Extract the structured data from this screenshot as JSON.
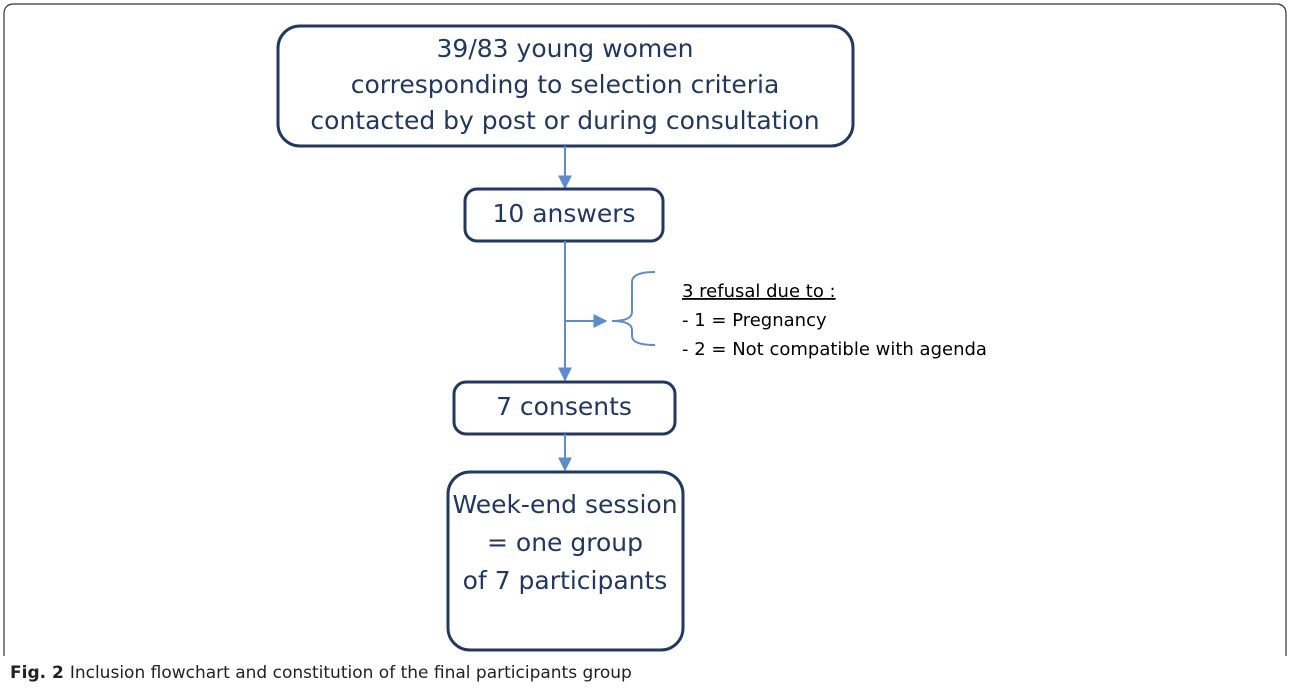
{
  "nodes": [
    {
      "lines": [
        "39/83 young women",
        "corresponding to selection criteria",
        "contacted by post or during consultation"
      ]
    },
    {
      "lines": [
        "10 answers"
      ]
    },
    {
      "lines": [
        "7 consents"
      ]
    },
    {
      "lines": [
        "Week-end session",
        "= one group",
        "of 7 participants"
      ]
    }
  ],
  "side_note": {
    "title": "3 refusal due to :",
    "items": [
      "- 1 = Pregnancy",
      "- 2 = Not compatible with agenda"
    ]
  },
  "caption": {
    "label": "Fig. 2",
    "text": "Inclusion flowchart and constitution of the final participants group"
  }
}
